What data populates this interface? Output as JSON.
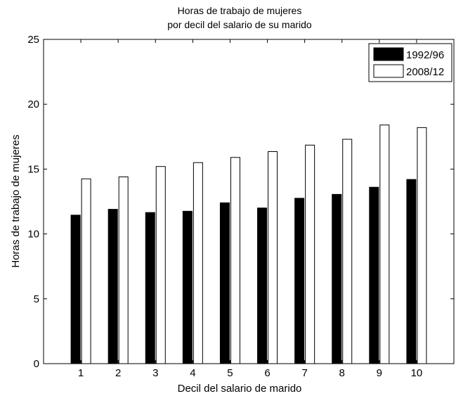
{
  "chart_data": {
    "type": "bar",
    "title": [
      "Horas de trabajo de mujeres",
      "por decil del salario de su marido"
    ],
    "xlabel": "Decil del salario de marido",
    "ylabel": "Horas de trabajo de mujeres",
    "categories": [
      "1",
      "2",
      "3",
      "4",
      "5",
      "6",
      "7",
      "8",
      "9",
      "10"
    ],
    "ylim": [
      0,
      25
    ],
    "yticks": [
      "0",
      "5",
      "10",
      "15",
      "20",
      "25"
    ],
    "grid": false,
    "legend_position": "top-right",
    "series": [
      {
        "name": "1992/96",
        "color": "#000000",
        "values": [
          11.45,
          11.9,
          11.65,
          11.75,
          12.4,
          12.0,
          12.75,
          13.05,
          13.6,
          14.2
        ]
      },
      {
        "name": "2008/12",
        "color": "#ffffff",
        "values": [
          14.25,
          14.4,
          15.2,
          15.5,
          15.9,
          16.35,
          16.85,
          17.3,
          18.4,
          18.2
        ]
      }
    ]
  }
}
